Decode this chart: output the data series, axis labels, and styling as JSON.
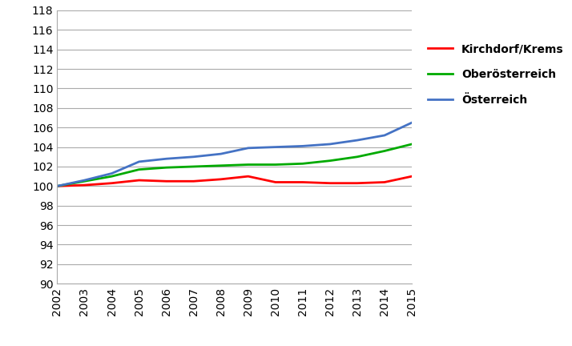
{
  "years": [
    2002,
    2003,
    2004,
    2005,
    2006,
    2007,
    2008,
    2009,
    2010,
    2011,
    2012,
    2013,
    2014,
    2015
  ],
  "kirchdorf": [
    100.0,
    100.1,
    100.3,
    100.6,
    100.5,
    100.5,
    100.7,
    101.0,
    100.4,
    100.4,
    100.3,
    100.3,
    100.4,
    101.0
  ],
  "oberoesterreich": [
    100.0,
    100.5,
    101.0,
    101.7,
    101.9,
    102.0,
    102.1,
    102.2,
    102.2,
    102.3,
    102.6,
    103.0,
    103.6,
    104.3
  ],
  "oesterreich": [
    100.0,
    100.6,
    101.3,
    102.5,
    102.8,
    103.0,
    103.3,
    103.9,
    104.0,
    104.1,
    104.3,
    104.7,
    105.2,
    106.5
  ],
  "line_colors": {
    "kirchdorf": "#ff0000",
    "oberoesterreich": "#00aa00",
    "oesterreich": "#4472c4"
  },
  "legend_labels": {
    "kirchdorf": "Kirchdorf/Krems",
    "oberoesterreich": "Oberösterreich",
    "oesterreich": "Österreich"
  },
  "ylim": [
    90,
    118
  ],
  "yticks": [
    90,
    92,
    94,
    96,
    98,
    100,
    102,
    104,
    106,
    108,
    110,
    112,
    114,
    116,
    118
  ],
  "background_color": "#ffffff",
  "grid_color": "#aaaaaa",
  "line_width": 2.0,
  "tick_fontsize": 10,
  "legend_fontsize": 10
}
